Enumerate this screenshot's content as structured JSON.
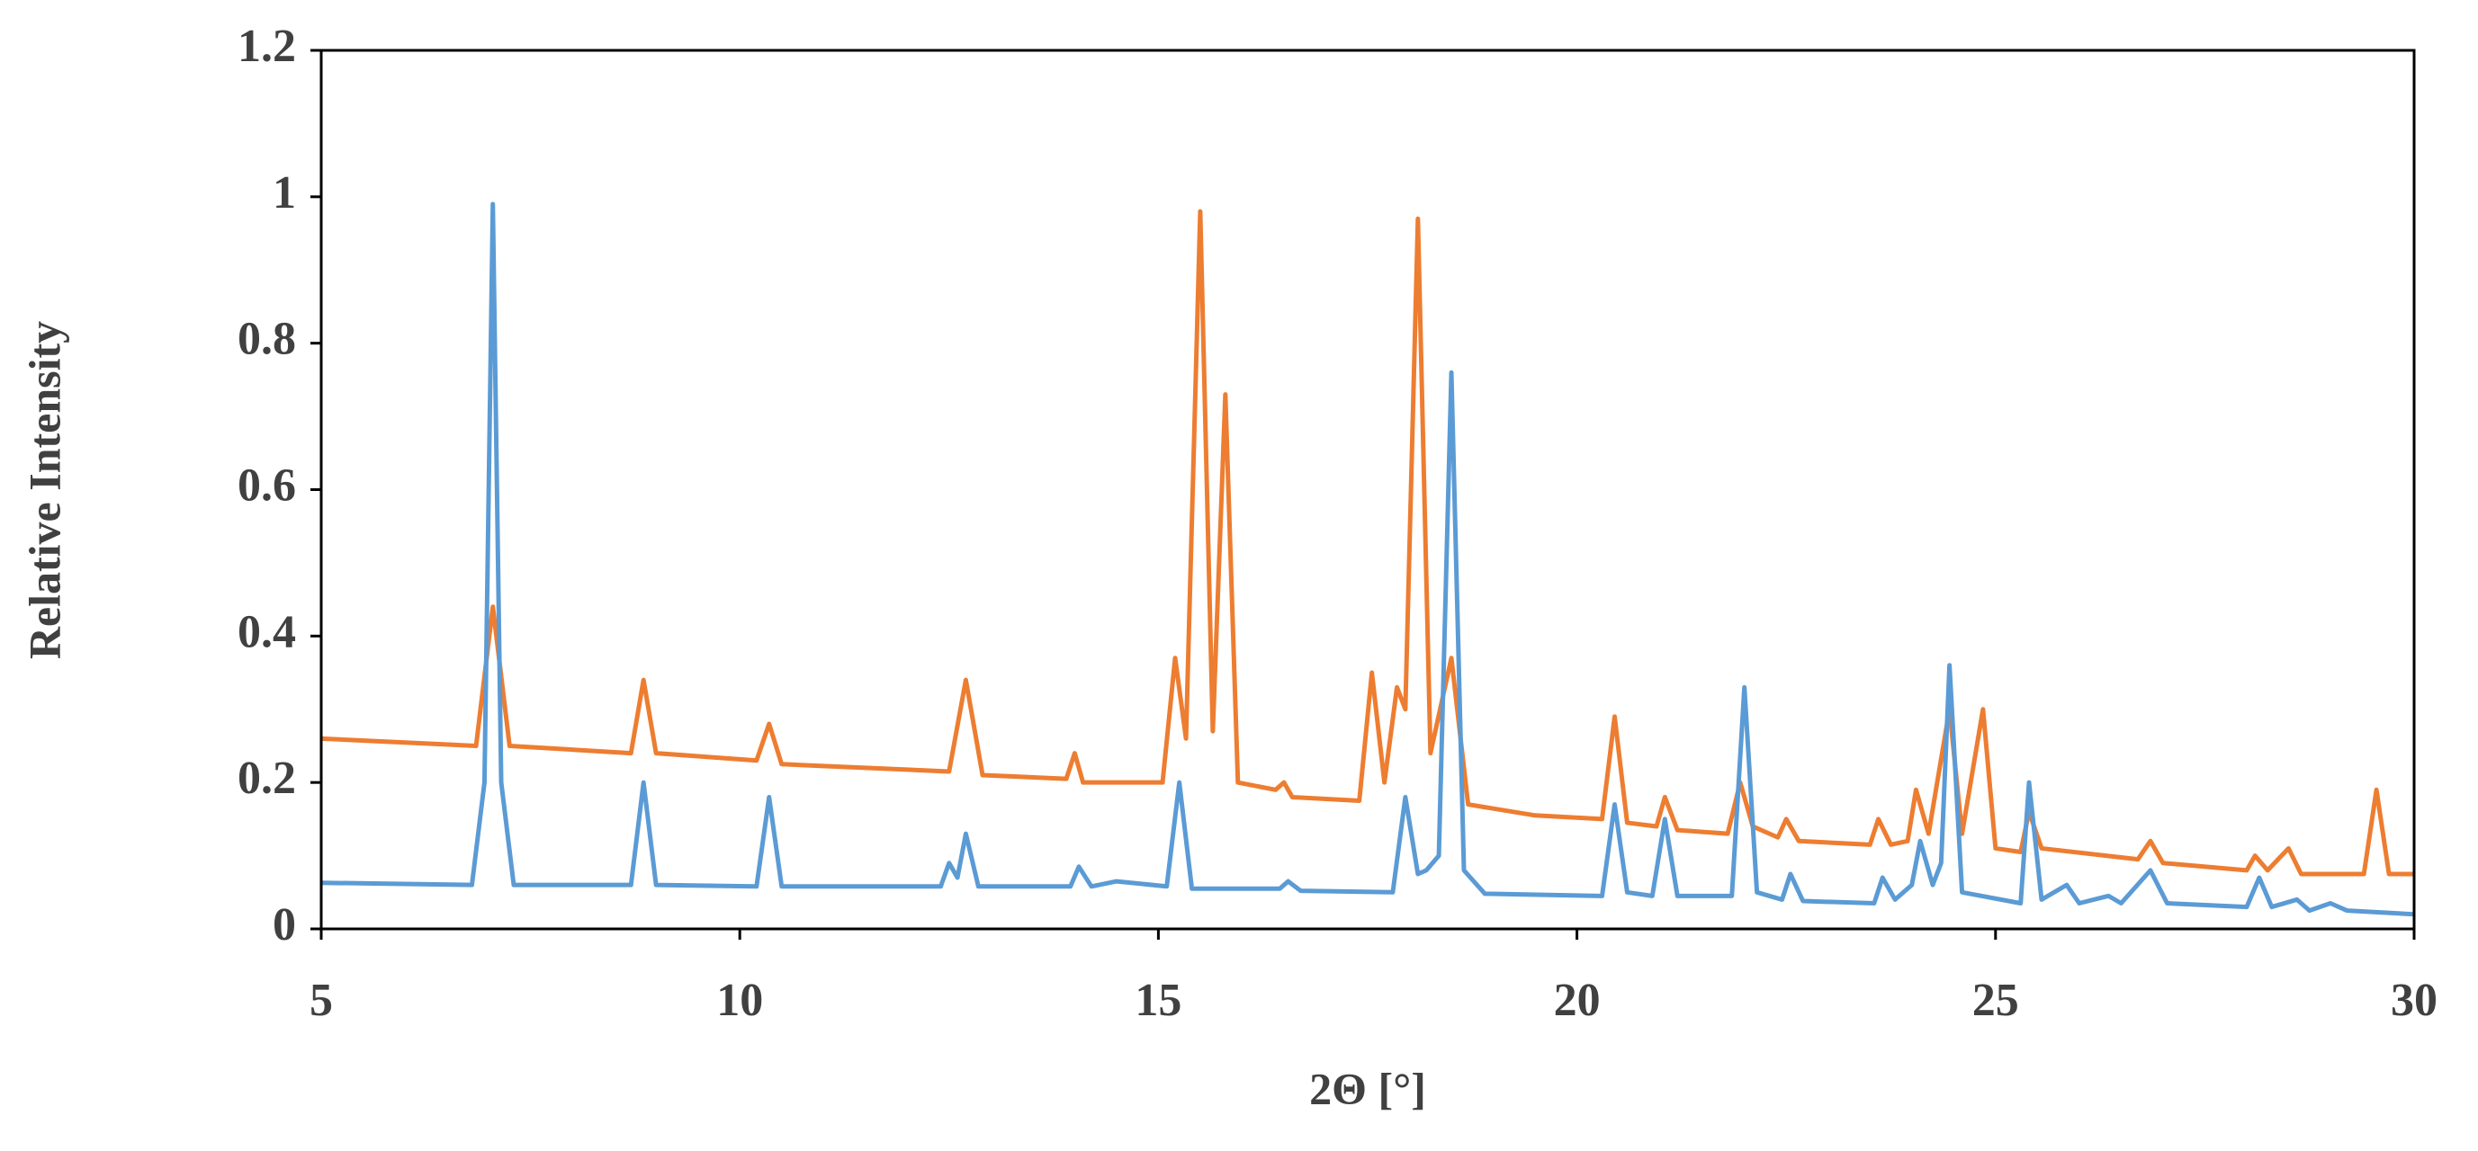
{
  "chart_data": {
    "type": "line",
    "xlabel": "2Θ [°]",
    "ylabel": "Relative Intensity",
    "xlim": [
      5,
      30
    ],
    "xticks": [
      5,
      10,
      15,
      20,
      25,
      30
    ],
    "ylim": [
      0,
      1.2
    ],
    "yticks": [
      0,
      0.2,
      0.4,
      0.6,
      0.8,
      1,
      1.2
    ],
    "grid": false,
    "series": [
      {
        "color": "#ed7d31",
        "x": [
          5,
          6.85,
          7.05,
          7.25,
          8.7,
          8.85,
          9.0,
          10.2,
          10.35,
          10.5,
          12.5,
          12.7,
          12.9,
          13.9,
          14.0,
          14.1,
          15.05,
          15.2,
          15.33,
          15.5,
          15.65,
          15.8,
          15.95,
          16.4,
          16.5,
          16.6,
          17.4,
          17.55,
          17.7,
          17.85,
          17.95,
          18.1,
          18.25,
          18.5,
          18.7,
          19.5,
          20.3,
          20.45,
          20.6,
          20.95,
          21.05,
          21.2,
          21.8,
          21.95,
          22.1,
          22.4,
          22.5,
          22.65,
          23.5,
          23.6,
          23.75,
          23.95,
          24.05,
          24.2,
          24.45,
          24.6,
          24.85,
          25.0,
          25.3,
          25.4,
          25.55,
          26.7,
          26.85,
          27.0,
          28.0,
          28.1,
          28.25,
          28.5,
          28.65,
          29.4,
          29.55,
          29.7,
          30
        ],
        "values": [
          0.26,
          0.25,
          0.44,
          0.25,
          0.24,
          0.34,
          0.24,
          0.23,
          0.28,
          0.225,
          0.215,
          0.34,
          0.21,
          0.205,
          0.24,
          0.2,
          0.2,
          0.37,
          0.26,
          0.98,
          0.27,
          0.73,
          0.2,
          0.19,
          0.2,
          0.18,
          0.175,
          0.35,
          0.2,
          0.33,
          0.3,
          0.97,
          0.24,
          0.37,
          0.17,
          0.155,
          0.15,
          0.29,
          0.145,
          0.14,
          0.18,
          0.135,
          0.13,
          0.2,
          0.14,
          0.125,
          0.15,
          0.12,
          0.115,
          0.15,
          0.115,
          0.12,
          0.19,
          0.13,
          0.3,
          0.13,
          0.3,
          0.11,
          0.105,
          0.16,
          0.11,
          0.095,
          0.12,
          0.09,
          0.08,
          0.1,
          0.08,
          0.11,
          0.075,
          0.075,
          0.19,
          0.075,
          0.075
        ]
      },
      {
        "color": "#5b9bd5",
        "x": [
          5,
          6.8,
          6.95,
          7.05,
          7.15,
          7.3,
          8.7,
          8.85,
          9.0,
          10.2,
          10.35,
          10.5,
          12.4,
          12.5,
          12.6,
          12.7,
          12.85,
          13.95,
          14.05,
          14.2,
          14.5,
          15.1,
          15.25,
          15.4,
          16.45,
          16.55,
          16.7,
          17.8,
          17.95,
          18.1,
          18.2,
          18.35,
          18.5,
          18.65,
          18.9,
          20.3,
          20.45,
          20.6,
          20.9,
          21.05,
          21.2,
          21.85,
          22.0,
          22.15,
          22.45,
          22.55,
          22.7,
          23.55,
          23.65,
          23.8,
          24.0,
          24.1,
          24.25,
          24.35,
          24.45,
          24.6,
          25.3,
          25.4,
          25.55,
          25.85,
          26.0,
          26.35,
          26.5,
          26.85,
          27.05,
          28.0,
          28.15,
          28.3,
          28.6,
          28.75,
          29.0,
          29.2,
          30
        ],
        "values": [
          0.063,
          0.06,
          0.2,
          0.99,
          0.2,
          0.06,
          0.06,
          0.2,
          0.06,
          0.058,
          0.18,
          0.058,
          0.058,
          0.09,
          0.07,
          0.13,
          0.058,
          0.058,
          0.085,
          0.058,
          0.065,
          0.058,
          0.2,
          0.055,
          0.055,
          0.065,
          0.052,
          0.05,
          0.18,
          0.075,
          0.08,
          0.1,
          0.76,
          0.08,
          0.048,
          0.045,
          0.17,
          0.05,
          0.045,
          0.15,
          0.045,
          0.045,
          0.33,
          0.05,
          0.04,
          0.075,
          0.038,
          0.035,
          0.07,
          0.04,
          0.06,
          0.12,
          0.06,
          0.09,
          0.36,
          0.05,
          0.035,
          0.2,
          0.04,
          0.06,
          0.035,
          0.045,
          0.035,
          0.08,
          0.035,
          0.03,
          0.07,
          0.03,
          0.04,
          0.025,
          0.035,
          0.025,
          0.02
        ]
      }
    ]
  }
}
